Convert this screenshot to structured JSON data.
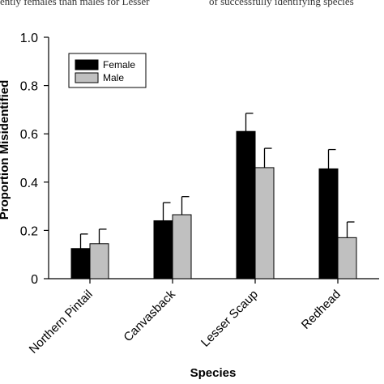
{
  "header_text": {
    "left": "ently females than males for Lesser",
    "right": "of successfully identifying species"
  },
  "chart_data": {
    "type": "bar",
    "categories": [
      "Northern Pintail",
      "Canvasback",
      "Lesser Scaup",
      "Redhead"
    ],
    "series": [
      {
        "name": "Female",
        "color": "#000000",
        "values": [
          0.125,
          0.24,
          0.61,
          0.455
        ],
        "errors": [
          0.06,
          0.075,
          0.075,
          0.08
        ]
      },
      {
        "name": "Male",
        "color": "#c0c0c0",
        "values": [
          0.145,
          0.265,
          0.46,
          0.17
        ],
        "errors": [
          0.06,
          0.075,
          0.08,
          0.065
        ]
      }
    ],
    "xlabel": "Species",
    "ylabel": "Proportion Misidentified",
    "ylim": [
      0,
      1.0
    ],
    "yticks": [
      "0",
      "0.2",
      "0.4",
      "0.6",
      "0.8",
      "1.0"
    ],
    "grid": false,
    "legend_position": "top-left"
  }
}
